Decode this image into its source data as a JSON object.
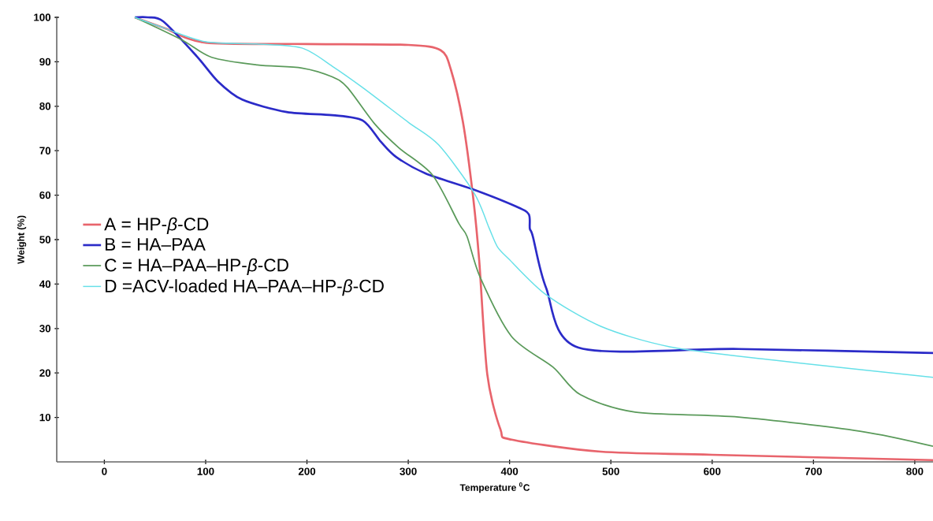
{
  "chart_data": {
    "type": "line",
    "xlabel": "Temperature $^{0}$C",
    "ylabel": "Weight (%)",
    "xlim": [
      -47,
      818
    ],
    "ylim": [
      0,
      100
    ],
    "xticks": [
      0,
      100,
      200,
      300,
      400,
      500,
      600,
      700,
      800
    ],
    "yticks": [
      10,
      20,
      30,
      40,
      50,
      60,
      70,
      80,
      90,
      100
    ],
    "grid": false,
    "legend": "left",
    "marker": "none",
    "line_style": "solid",
    "series": [
      {
        "name": "A = HP-*β*-CD",
        "color": "#e8646c",
        "x": [
          30,
          60,
          100,
          200,
          300,
          332,
          342,
          354,
          364,
          370,
          378,
          391,
          402,
          490,
          600,
          818
        ],
        "values": [
          100,
          97.5,
          94.3,
          94,
          93.8,
          92.6,
          88.3,
          76.4,
          59.6,
          45.4,
          19.7,
          7.3,
          5.0,
          2.3,
          1.6,
          0.4
        ]
      },
      {
        "name": "B = HA–PAA",
        "color": "#2b2bc8",
        "x": [
          30,
          43,
          58,
          91,
          112,
          136,
          180,
          225,
          255,
          273,
          288,
          317,
          364,
          407,
          419,
          420,
          423,
          436,
          468,
          626,
          818
        ],
        "values": [
          100,
          100,
          99.1,
          91.3,
          85.6,
          81.5,
          78.7,
          78,
          76.8,
          72,
          68.6,
          64.9,
          61.3,
          57.4,
          55.7,
          52.5,
          50.7,
          39.2,
          25.7,
          25.4,
          24.5
        ]
      },
      {
        "name": "C = HA–PAA–HP-*β*-CD",
        "color": "#5a9a5a",
        "x": [
          30,
          76,
          106,
          151,
          195,
          225,
          240,
          267,
          291,
          324,
          350,
          358,
          371,
          402,
          443,
          470,
          524,
          626,
          746,
          818
        ],
        "values": [
          100,
          95,
          91,
          89.3,
          88.6,
          86.6,
          84.2,
          76,
          70.6,
          64.5,
          53.6,
          50.7,
          41.5,
          28.2,
          21.3,
          15.1,
          11.2,
          10.1,
          6.9,
          3.5
        ]
      },
      {
        "name": "D =ACV-loaded HA–PAA–HP-*β*-CD",
        "color": "#66e0e8",
        "x": [
          30,
          60,
          100,
          150,
          195,
          225,
          255,
          300,
          330,
          365,
          380,
          388,
          399,
          436,
          490,
          558,
          660,
          818
        ],
        "values": [
          100,
          97.5,
          94.5,
          94,
          93.1,
          89,
          84.2,
          76.4,
          71.3,
          60.5,
          52.5,
          48.4,
          45.7,
          37.6,
          30.5,
          25.9,
          22.9,
          19.0
        ]
      }
    ]
  }
}
